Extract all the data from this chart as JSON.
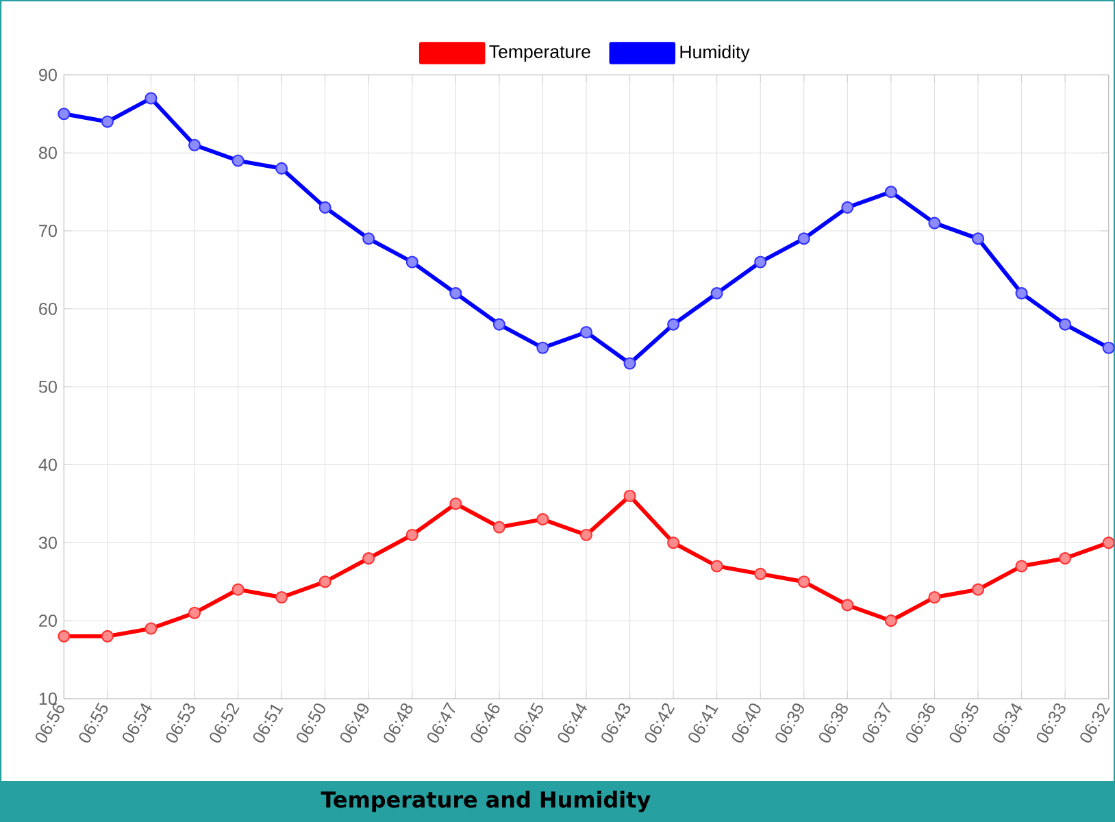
{
  "chart_data": {
    "type": "line",
    "title": "Temperature and Humidity",
    "categories": [
      "06:56",
      "06:55",
      "06:54",
      "06:53",
      "06:52",
      "06:51",
      "06:50",
      "06:49",
      "06:48",
      "06:47",
      "06:46",
      "06:45",
      "06:44",
      "06:43",
      "06:42",
      "06:41",
      "06:40",
      "06:39",
      "06:38",
      "06:37",
      "06:36",
      "06:35",
      "06:34",
      "06:33",
      "06:32"
    ],
    "series": [
      {
        "name": "Temperature",
        "color": "#ff0000",
        "values": [
          18,
          18,
          19,
          21,
          24,
          23,
          25,
          28,
          31,
          35,
          32,
          33,
          31,
          36,
          30,
          27,
          26,
          25,
          22,
          20,
          23,
          24,
          27,
          28,
          30
        ]
      },
      {
        "name": "Humidity",
        "color": "#0000ff",
        "values": [
          85,
          84,
          87,
          81,
          79,
          78,
          73,
          69,
          66,
          62,
          58,
          55,
          57,
          53,
          58,
          62,
          66,
          69,
          73,
          75,
          71,
          69,
          62,
          58,
          55
        ]
      }
    ],
    "ylim": [
      10,
      90
    ],
    "yticks": [
      10,
      20,
      30,
      40,
      50,
      60,
      70,
      80,
      90
    ],
    "grid": true,
    "legend": "top",
    "marker": "circle",
    "line_style": "solid"
  }
}
